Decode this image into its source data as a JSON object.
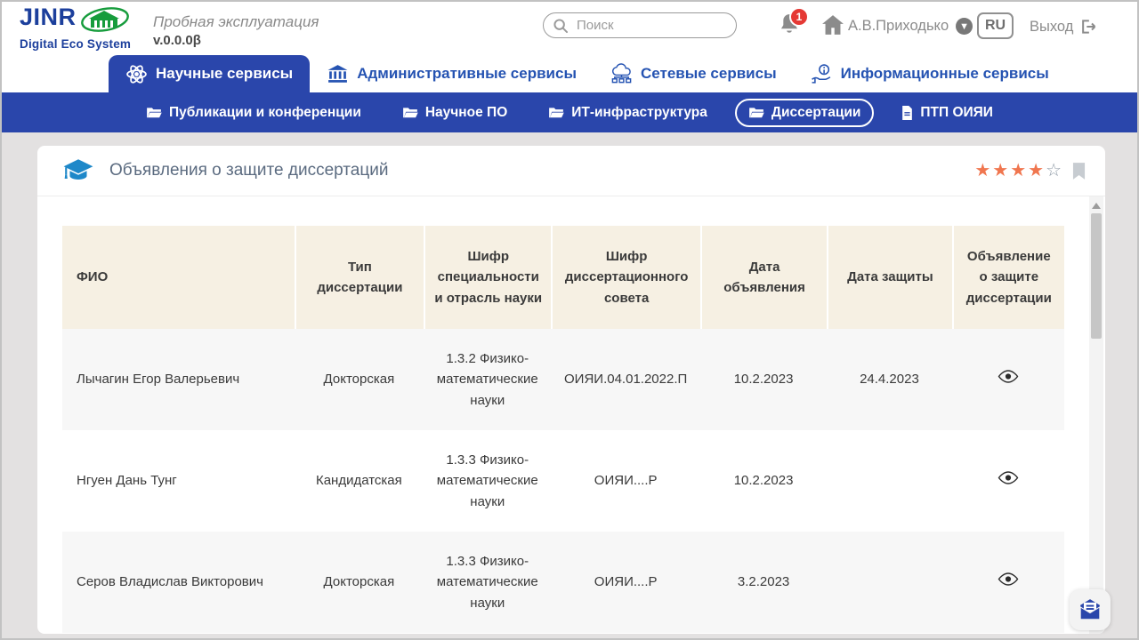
{
  "header": {
    "logo_line1": "JINR",
    "logo_line2": "Digital Eco System",
    "env_label": "Пробная эксплуатация",
    "version": "v.0.0.0β",
    "search_placeholder": "Поиск",
    "notification_count": "1",
    "user_name": "А.В.Приходько",
    "language": "RU",
    "logout_label": "Выход"
  },
  "tabs": {
    "items": [
      {
        "label": "Научные сервисы",
        "icon": "atom-icon",
        "active": true
      },
      {
        "label": "Административные сервисы",
        "icon": "bank-icon",
        "active": false
      },
      {
        "label": "Сетевые сервисы",
        "icon": "network-icon",
        "active": false
      },
      {
        "label": "Информационные сервисы",
        "icon": "info-hand-icon",
        "active": false
      }
    ]
  },
  "subnav": {
    "items": [
      {
        "label": "Публикации и конференции",
        "icon": "folder-icon",
        "active": false
      },
      {
        "label": "Научное ПО",
        "icon": "folder-icon",
        "active": false
      },
      {
        "label": "ИТ-инфраструктура",
        "icon": "folder-icon",
        "active": false
      },
      {
        "label": "Диссертации",
        "icon": "folder-icon",
        "active": true
      },
      {
        "label": "ПТП ОИЯИ",
        "icon": "file-icon",
        "active": false
      }
    ]
  },
  "card": {
    "title": "Объявления о защите диссертаций",
    "rating": {
      "filled": 4,
      "total": 5
    }
  },
  "table": {
    "columns": [
      "ФИО",
      "Тип диссертации",
      "Шифр специальности и отрасль науки",
      "Шифр диссертационного совета",
      "Дата объявления",
      "Дата защиты",
      "Объявление о защите диссертации"
    ],
    "rows": [
      {
        "fio": "Лычагин Егор Валерьевич",
        "type": "Докторская",
        "specialty": "1.3.2 Физико-математические науки",
        "council": "ОИЯИ.04.01.2022.П",
        "announced": "10.2.2023",
        "defense": "24.4.2023"
      },
      {
        "fio": "Нгуен Дань Тунг",
        "type": "Кандидатская",
        "specialty": "1.3.3 Физико-математические науки",
        "council": "ОИЯИ....Р",
        "announced": "10.2.2023",
        "defense": ""
      },
      {
        "fio": "Серов Владислав Викторович",
        "type": "Докторская",
        "specialty": "1.3.3 Физико-математические науки",
        "council": "ОИЯИ....Р",
        "announced": "3.2.2023",
        "defense": ""
      }
    ]
  },
  "colors": {
    "primary_blue": "#2a46ab",
    "tab_text_blue": "#2553b2",
    "logo_blue": "#1c3f9c",
    "logo_green": "#169c3c",
    "cap_blue": "#1e88c9",
    "star_orange": "#f0764f",
    "badge_red": "#e53935",
    "table_header_bg": "#f6f0e3"
  }
}
